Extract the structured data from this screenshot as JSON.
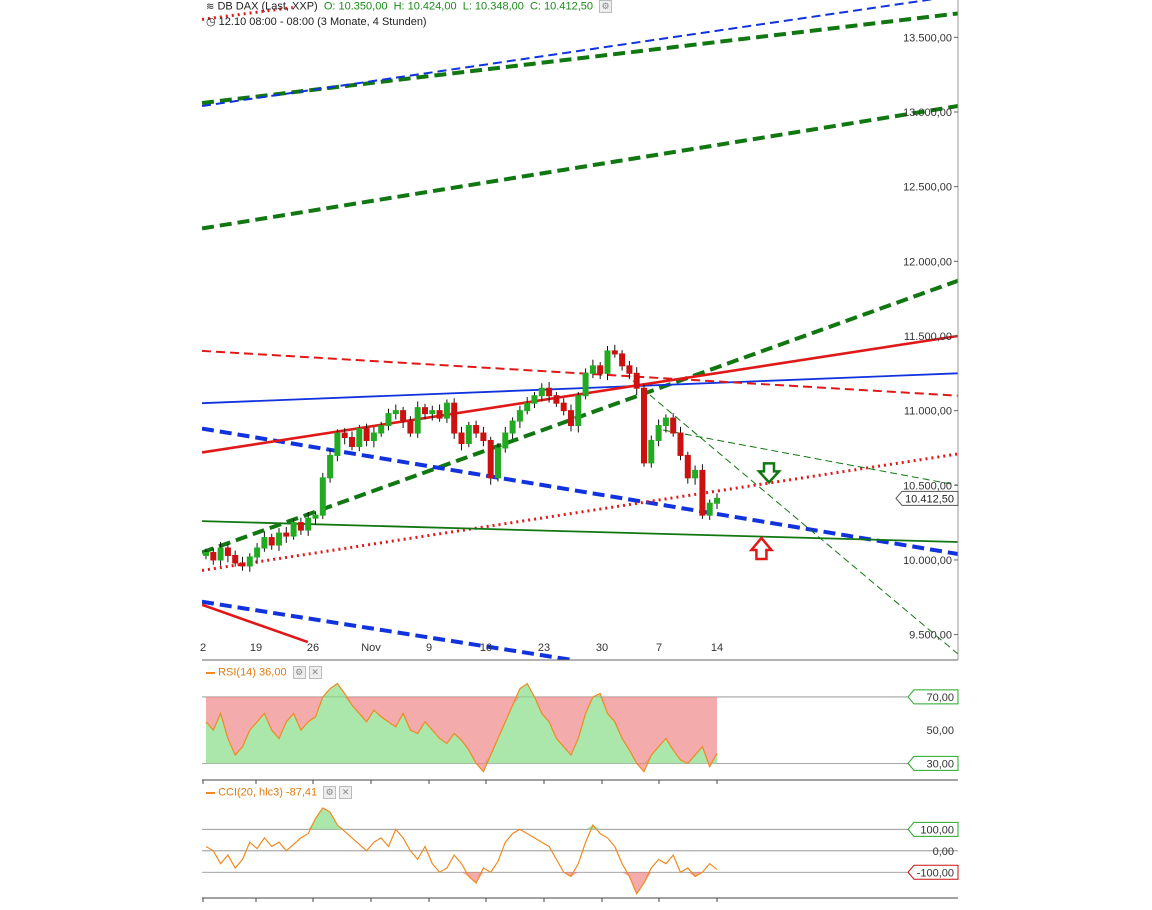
{
  "header": {
    "icon": "candlestick-icon",
    "title": "DB DAX (Last, XXP)",
    "open": "O: 10.350,00",
    "high": "H: 10.424,00",
    "low": "L: 10.348,00",
    "close": "C: 10.412,50",
    "period_icon": "clock-icon",
    "period": "12.10 08:00 - 08:00 (3 Monate, 4 Stunden)"
  },
  "colors": {
    "up_candle": "#22aa22",
    "down_candle": "#cc1111",
    "green_line": "#117711",
    "red_line": "#e01818",
    "blue_line": "#1133dd",
    "indicator": "#f08a20"
  },
  "chart_data": [
    {
      "type": "candlestick",
      "title": "DB DAX (Last, XXP)",
      "x_tick_labels": [
        "2",
        "19",
        "26",
        "Nov",
        "9",
        "16",
        "23",
        "30",
        "7",
        "14"
      ],
      "y_tick_labels": [
        "9.500,00",
        "10.000,00",
        "10.500,00",
        "11.000,00",
        "11.500,00",
        "12.000,00",
        "12.500,00",
        "13.000,00",
        "13.500,00"
      ],
      "ylim": [
        9330,
        13750
      ],
      "last_price_label": "10.412,50",
      "close_path": [
        10050,
        10000,
        10080,
        10030,
        9980,
        9960,
        10020,
        10080,
        10150,
        10100,
        10180,
        10160,
        10250,
        10200,
        10280,
        10300,
        10550,
        10700,
        10850,
        10820,
        10760,
        10880,
        10800,
        10850,
        10900,
        10980,
        11000,
        10930,
        10850,
        11020,
        10980,
        11000,
        10950,
        11050,
        10850,
        10780,
        10900,
        10850,
        10800,
        10550,
        10750,
        10850,
        10930,
        11000,
        11050,
        11100,
        11150,
        11100,
        11050,
        11000,
        10900,
        11100,
        11250,
        11300,
        11250,
        11400,
        11380,
        11300,
        11250,
        11150,
        10650,
        10800,
        10900,
        10950,
        10850,
        10700,
        10550,
        10600,
        10300,
        10380,
        10412.5
      ],
      "trend_lines": [
        {
          "name": "green-channel-upper",
          "color": "green",
          "dash": "long",
          "start": [
            0,
            13060
          ],
          "end": [
            1,
            13660
          ]
        },
        {
          "name": "green-channel-middle",
          "color": "green",
          "dash": "long",
          "start": [
            0,
            12220
          ],
          "end": [
            1,
            13040
          ]
        },
        {
          "name": "green-channel-lower",
          "color": "green",
          "dash": "long",
          "start": [
            0,
            10050
          ],
          "end": [
            1,
            11870
          ]
        },
        {
          "name": "blue-channel-upper",
          "color": "blue",
          "dash": "short",
          "start": [
            0,
            13040
          ],
          "end": [
            1,
            13780
          ]
        },
        {
          "name": "blue-channel-lower",
          "color": "blue",
          "dash": "long",
          "start": [
            0,
            10880
          ],
          "end": [
            1,
            10040
          ]
        },
        {
          "name": "blue-channel-bottom",
          "color": "blue",
          "dash": "long",
          "start": [
            0,
            9720
          ],
          "end": [
            0.49,
            9330
          ]
        },
        {
          "name": "blue-solid-resistance",
          "color": "blue",
          "dash": "solid",
          "start": [
            0,
            11050
          ],
          "end": [
            1,
            11250
          ]
        },
        {
          "name": "red-solid-trend",
          "color": "red",
          "dash": "solid",
          "start": [
            0,
            10720
          ],
          "end": [
            1,
            11500
          ]
        },
        {
          "name": "red-dashed-trend",
          "color": "red",
          "dash": "short",
          "start": [
            0,
            11400
          ],
          "end": [
            1,
            11100
          ]
        },
        {
          "name": "red-dotted-support",
          "color": "red",
          "dash": "dotted",
          "start": [
            0,
            9930
          ],
          "end": [
            1,
            10710
          ]
        },
        {
          "name": "red-dotted-top",
          "color": "red",
          "dash": "dotted",
          "start": [
            0,
            13620
          ],
          "end": [
            0.12,
            13700
          ]
        },
        {
          "name": "red-solid-lower",
          "color": "red",
          "dash": "solid",
          "start": [
            0,
            9700
          ],
          "end": [
            0.14,
            9450
          ]
        },
        {
          "name": "green-solid-support",
          "color": "green",
          "dash": "solid",
          "start": [
            0,
            10260
          ],
          "end": [
            1,
            10120
          ]
        },
        {
          "name": "green-thin-dashed-1",
          "color": "green",
          "dash": "thin",
          "start": [
            0.61,
            10870
          ],
          "end": [
            1,
            10500
          ]
        },
        {
          "name": "green-thin-dashed-2",
          "color": "green",
          "dash": "thin",
          "start": [
            0.57,
            11200
          ],
          "end": [
            1,
            9370
          ]
        }
      ],
      "markers": [
        {
          "name": "down-arrow",
          "color": "green",
          "at": [
            0.75,
            10580
          ]
        },
        {
          "name": "up-arrow",
          "color": "red",
          "at": [
            0.74,
            10080
          ]
        }
      ]
    },
    {
      "type": "line",
      "title": "RSI(14)",
      "value_label": "36,00",
      "y_tick_labels": [
        "30,00",
        "50,00",
        "70,00"
      ],
      "ylim": [
        20,
        85
      ],
      "levels": [
        30,
        70
      ],
      "values": [
        55,
        50,
        60,
        45,
        35,
        40,
        50,
        55,
        60,
        50,
        45,
        55,
        60,
        50,
        55,
        58,
        70,
        75,
        78,
        72,
        65,
        60,
        55,
        62,
        58,
        55,
        52,
        60,
        50,
        48,
        55,
        50,
        45,
        42,
        48,
        44,
        38,
        30,
        25,
        35,
        45,
        55,
        65,
        75,
        78,
        70,
        60,
        55,
        45,
        40,
        35,
        45,
        60,
        70,
        72,
        60,
        55,
        45,
        38,
        30,
        25,
        35,
        40,
        45,
        38,
        32,
        30,
        35,
        40,
        28,
        36
      ]
    },
    {
      "type": "line",
      "title": "CCI(20, hlc3)",
      "value_label": "-87,41",
      "y_tick_labels": [
        "100,00",
        "0,00",
        "-100,00"
      ],
      "ylim": [
        -220,
        260
      ],
      "levels": [
        100,
        0,
        -100
      ],
      "values": [
        20,
        0,
        -60,
        -20,
        -80,
        -40,
        40,
        10,
        60,
        20,
        40,
        0,
        30,
        60,
        80,
        150,
        200,
        180,
        120,
        90,
        60,
        30,
        0,
        40,
        60,
        20,
        100,
        60,
        0,
        -40,
        20,
        -60,
        -100,
        -80,
        -20,
        -60,
        -120,
        -150,
        -80,
        -100,
        -50,
        40,
        80,
        100,
        80,
        60,
        40,
        20,
        -40,
        -100,
        -120,
        -60,
        40,
        120,
        80,
        60,
        20,
        -60,
        -120,
        -200,
        -150,
        -80,
        -40,
        -60,
        -20,
        -100,
        -80,
        -120,
        -100,
        -60,
        -87
      ]
    }
  ]
}
